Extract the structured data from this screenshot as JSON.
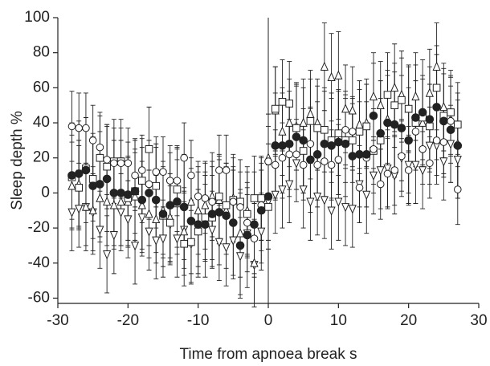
{
  "chart_data": {
    "type": "scatter",
    "xlabel": "Time from apnoea break s",
    "ylabel": "Sleep depth %",
    "xlim": [
      -30,
      30
    ],
    "xticks": [
      -30,
      -20,
      -10,
      0,
      10,
      20,
      30
    ],
    "ylim": [
      -63,
      100
    ],
    "yticks": [
      -60,
      -40,
      -20,
      0,
      20,
      40,
      60,
      80,
      100
    ],
    "vlines": [
      0
    ],
    "x": [
      -28,
      -27,
      -26,
      -25,
      -24,
      -23,
      -22,
      -21,
      -20,
      -19,
      -18,
      -17,
      -16,
      -15,
      -14,
      -13,
      -12,
      -11,
      -10,
      -9,
      -8,
      -7,
      -6,
      -5,
      -4,
      -3,
      -2,
      -1,
      0,
      1,
      2,
      3,
      4,
      5,
      6,
      7,
      8,
      9,
      10,
      11,
      12,
      13,
      14,
      15,
      16,
      17,
      18,
      19,
      20,
      21,
      22,
      23,
      24,
      25,
      26,
      27
    ],
    "series": [
      {
        "marker": "triangle-down",
        "color": "#222222",
        "error": 22,
        "values": [
          -11,
          -9,
          -8,
          -11,
          -21,
          -35,
          -24,
          -11,
          -15,
          -30,
          -14,
          -22,
          -27,
          -26,
          -18,
          -26,
          -21,
          -29,
          -20,
          -17,
          -21,
          -28,
          -31,
          -27,
          -36,
          -23,
          -41,
          -22,
          -5,
          -1,
          2,
          5,
          17,
          2,
          -5,
          -2,
          -4,
          -10,
          -5,
          -8,
          -9,
          5,
          -1,
          10,
          13,
          14,
          10,
          20,
          16,
          16,
          13,
          27,
          27,
          18,
          28,
          19
        ]
      },
      {
        "marker": "triangle-up",
        "color": "#222222",
        "error": 25,
        "values": [
          4,
          5,
          -8,
          -10,
          -3,
          -5,
          -7,
          -5,
          -5,
          -2,
          -7,
          -12,
          -15,
          -10,
          -14,
          -6,
          -22,
          -5,
          -10,
          -7,
          -2,
          -4,
          -10,
          -3,
          -23,
          -10,
          -40,
          -8,
          20,
          47,
          35,
          40,
          38,
          40,
          45,
          40,
          72,
          66,
          67,
          48,
          47,
          39,
          40,
          55,
          50,
          42,
          60,
          56,
          48,
          55,
          40,
          57,
          72,
          49,
          42,
          28
        ]
      },
      {
        "marker": "square",
        "color": "#222222",
        "error": 24,
        "values": [
          9,
          3,
          14,
          8,
          20,
          15,
          18,
          18,
          -3,
          1,
          7,
          25,
          4,
          -13,
          -17,
          2,
          -29,
          -28,
          -22,
          -14,
          -14,
          -2,
          -7,
          -4,
          -5,
          -12,
          -3,
          -3,
          -8,
          48,
          52,
          51,
          37,
          24,
          41,
          37,
          36,
          30,
          34,
          30,
          30,
          35,
          38,
          24,
          30,
          56,
          50,
          53,
          48,
          40,
          43,
          38,
          60,
          44,
          46,
          39
        ]
      },
      {
        "marker": "circle-open",
        "color": "#222222",
        "error": 20,
        "values": [
          38,
          37,
          37,
          30,
          26,
          19,
          17,
          17,
          17,
          10,
          13,
          5,
          12,
          12,
          7,
          7,
          20,
          10,
          -2,
          -3,
          -5,
          13,
          13,
          -5,
          -8,
          -17,
          -26,
          -7,
          18,
          16,
          20,
          22,
          22,
          16,
          28,
          16,
          18,
          16,
          19,
          36,
          35,
          3,
          20,
          25,
          5,
          11,
          13,
          21,
          13,
          35,
          25,
          17,
          30,
          29,
          41,
          2
        ]
      },
      {
        "marker": "circle-filled",
        "color": "#222222",
        "error": 30,
        "values": [
          10,
          11,
          13,
          4,
          5,
          8,
          0,
          0,
          -1,
          1,
          -4,
          0,
          -4,
          -12,
          -7,
          -5,
          -8,
          -16,
          -18,
          -18,
          -12,
          -11,
          -13,
          -17,
          -30,
          -24,
          -18,
          -10,
          -2,
          27,
          27,
          28,
          32,
          30,
          19,
          22,
          28,
          27,
          29,
          28,
          21,
          22,
          22,
          44,
          34,
          40,
          39,
          37,
          30,
          43,
          46,
          42,
          49,
          41,
          36,
          27
        ]
      }
    ]
  }
}
